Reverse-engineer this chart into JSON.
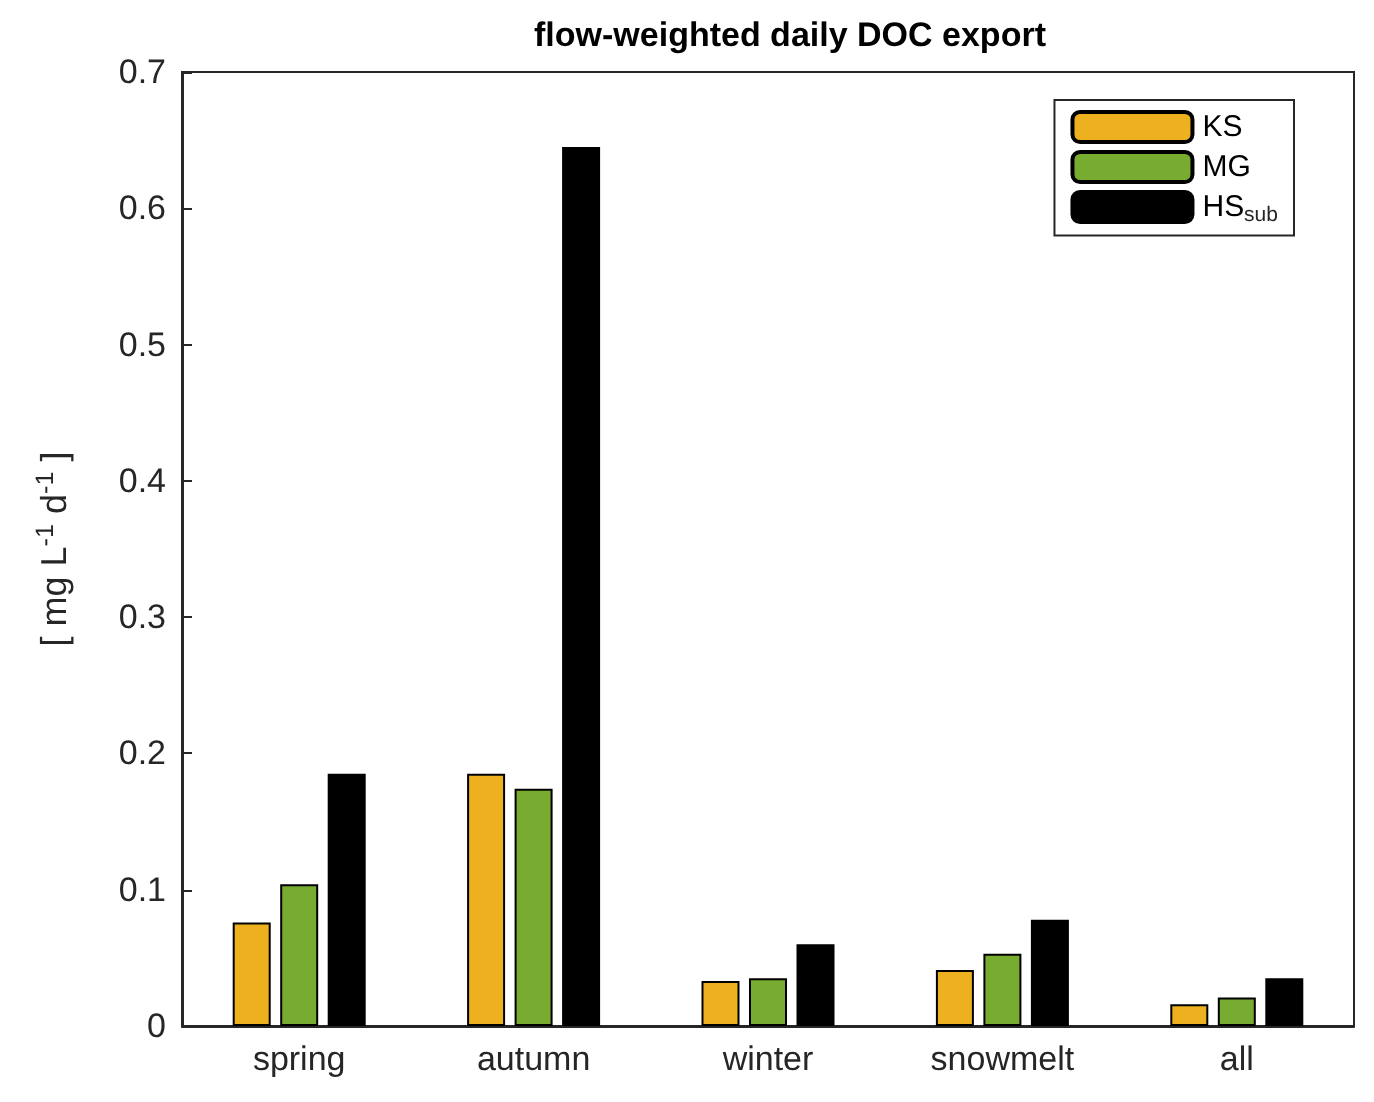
{
  "chart_data": {
    "type": "bar",
    "title": "flow-weighted daily DOC export",
    "ylabel": "[ mg L$^{-1}$ d$^{-1}$ ]",
    "categories": [
      "spring",
      "autumn",
      "winter",
      "snowmelt",
      "all"
    ],
    "series": [
      {
        "name": "KS",
        "color": "#edb120",
        "values": [
          0.076,
          0.185,
          0.033,
          0.041,
          0.016
        ]
      },
      {
        "name": "MG",
        "color": "#77ac30",
        "values": [
          0.104,
          0.174,
          0.035,
          0.053,
          0.021
        ]
      },
      {
        "name": "HS$_{sub}$",
        "color": "#000000",
        "values": [
          0.185,
          0.645,
          0.06,
          0.078,
          0.035
        ]
      }
    ],
    "ylim": [
      0,
      0.7
    ],
    "yticks": [
      0,
      0.1,
      0.2,
      0.3,
      0.4,
      0.5,
      0.6,
      0.7
    ],
    "grid": false,
    "legend": "top right"
  }
}
